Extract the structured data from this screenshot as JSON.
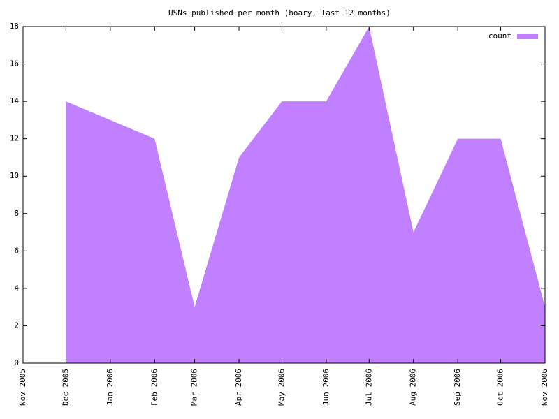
{
  "chart_data": {
    "type": "area",
    "title": "USNs published per month (hoary, last 12 months)",
    "x": [
      "Dec 2005",
      "Jan 2006",
      "Feb 2006",
      "Mar 2006",
      "Apr 2006",
      "May 2006",
      "Jun 2006",
      "Jul 2006",
      "Aug 2006",
      "Sep 2006",
      "Oct 2006",
      "Nov 2006"
    ],
    "series": [
      {
        "name": "count",
        "color": "#c080ff",
        "values": [
          14,
          13,
          12,
          3,
          11,
          14,
          14,
          18,
          7,
          12,
          12,
          3
        ]
      }
    ],
    "xlim": [
      "Nov 2005",
      "Nov 2006"
    ],
    "xticks": [
      "Nov 2005",
      "Dec 2005",
      "Jan 2006",
      "Feb 2006",
      "Mar 2006",
      "Apr 2006",
      "May 2006",
      "Jun 2006",
      "Jul 2006",
      "Aug 2006",
      "Sep 2006",
      "Oct 2006",
      "Nov 2006"
    ],
    "ylim": [
      0,
      18
    ],
    "yticks": [
      0,
      2,
      4,
      6,
      8,
      10,
      12,
      14,
      16,
      18
    ],
    "legend": "top-right"
  }
}
